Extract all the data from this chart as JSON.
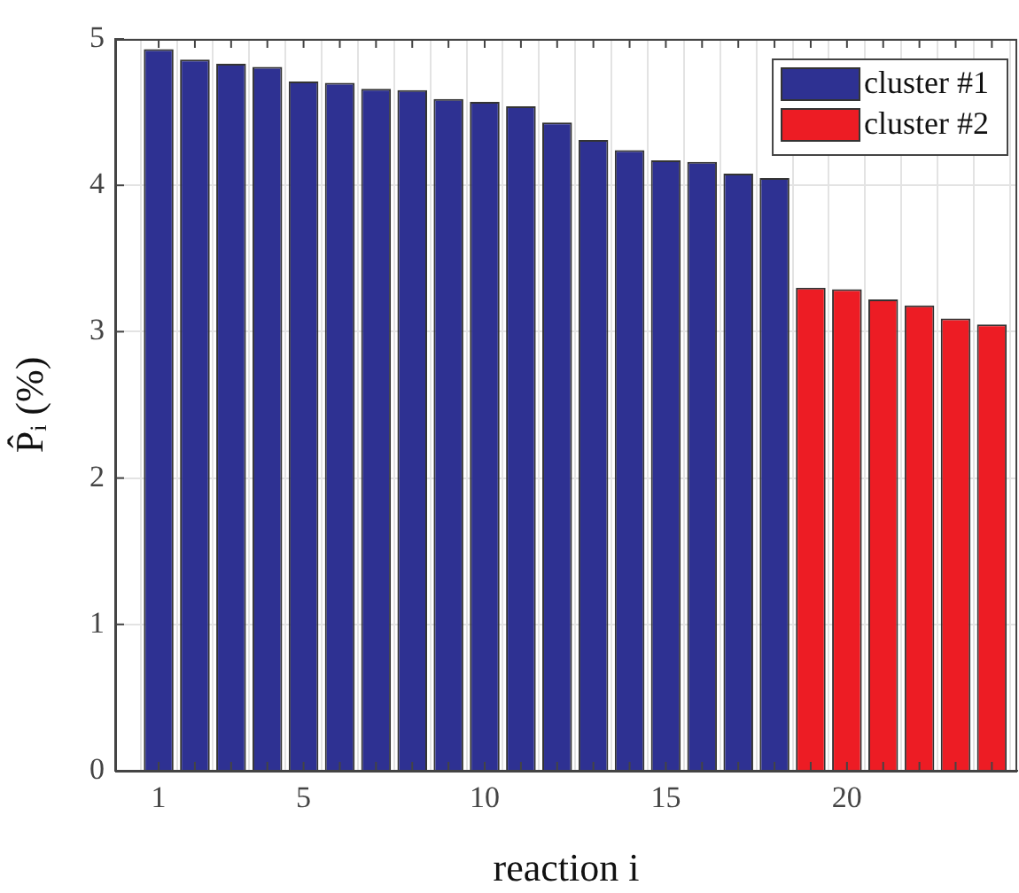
{
  "chart_data": {
    "type": "bar",
    "xlabel": "reaction i",
    "ylabel": "P̂ᵢ (%)",
    "series": [
      {
        "name": "cluster #1",
        "color": "#2e3192",
        "x": [
          1,
          2,
          3,
          4,
          5,
          6,
          7,
          8,
          9,
          10,
          11,
          12,
          13,
          14,
          15,
          16,
          17,
          18
        ],
        "values": [
          4.93,
          4.86,
          4.83,
          4.81,
          4.71,
          4.7,
          4.66,
          4.65,
          4.59,
          4.57,
          4.54,
          4.43,
          4.31,
          4.24,
          4.17,
          4.16,
          4.08,
          4.05
        ]
      },
      {
        "name": "cluster #2",
        "color": "#ed1c24",
        "x": [
          19,
          20,
          21,
          22,
          23,
          24
        ],
        "values": [
          3.3,
          3.29,
          3.22,
          3.18,
          3.09,
          3.05
        ]
      }
    ],
    "xlim": [
      -0.2,
      24.7
    ],
    "xticks": [
      1,
      {
        "value": 2,
        "label": null
      },
      {
        "value": 3,
        "label": null
      },
      {
        "value": 4,
        "label": null
      },
      5,
      {
        "value": 6,
        "label": null
      },
      {
        "value": 7,
        "label": null
      },
      {
        "value": 8,
        "label": null
      },
      {
        "value": 9,
        "label": null
      },
      10,
      {
        "value": 11,
        "label": null
      },
      {
        "value": 12,
        "label": null
      },
      {
        "value": 13,
        "label": null
      },
      {
        "value": 14,
        "label": null
      },
      15,
      {
        "value": 16,
        "label": null
      },
      {
        "value": 17,
        "label": null
      },
      {
        "value": 18,
        "label": null
      },
      {
        "value": 19,
        "label": null
      },
      20,
      {
        "value": 21,
        "label": null
      },
      {
        "value": 22,
        "label": null
      },
      {
        "value": 23,
        "label": null
      },
      {
        "value": 24,
        "label": null
      }
    ],
    "ylim": [
      0,
      5
    ],
    "yticks": [
      0,
      1,
      2,
      3,
      4,
      5
    ],
    "grid": true,
    "legend": "top right"
  }
}
